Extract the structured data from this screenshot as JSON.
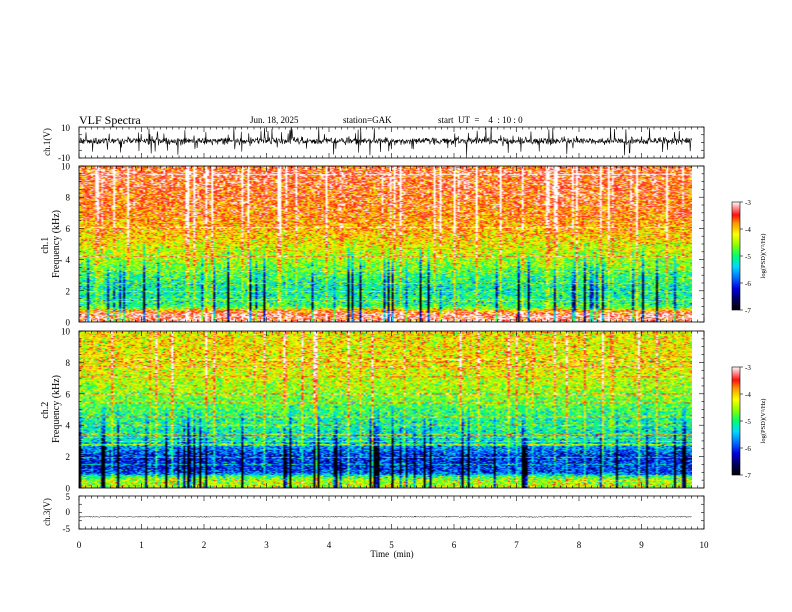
{
  "header": {
    "title": "VLF  Spectra",
    "date": "Jun. 18, 2025",
    "station": "station=GAK",
    "start": "start  UT  =    4  : 10 : 0"
  },
  "chart_data": [
    {
      "type": "line",
      "panel": "ch1-waveform",
      "ylabel": "ch.1(V)",
      "ylim": [
        -10,
        10
      ],
      "y_ticks": [
        "10",
        "-10"
      ],
      "xlim": [
        0,
        10
      ],
      "x_extent_min": 9.8,
      "trace": "dense noise waveform, baseline about 1 V, excursions to about +9 V and -10 V"
    },
    {
      "type": "heatmap",
      "panel": "ch1-spectrogram",
      "ylabel": "ch.1\nFrequency  (kHz)",
      "ylim": [
        0,
        10
      ],
      "y_ticks": [
        "0",
        "2",
        "4",
        "6",
        "8",
        "10"
      ],
      "xlim": [
        0,
        10
      ],
      "x_extent_min": 9.8,
      "color_range": [
        -7,
        -3
      ],
      "colorbar_ticks": [
        "-3",
        "-4",
        "-5",
        "-6",
        "-7"
      ],
      "colorbar_label": "log(PSD)(V²/Hz)",
      "typical_log_psd_by_frequency_khz": [
        {
          "f": 0.5,
          "v": -3.6
        },
        {
          "f": 1.0,
          "v": -5.0
        },
        {
          "f": 2.0,
          "v": -5.2
        },
        {
          "f": 3.0,
          "v": -4.9
        },
        {
          "f": 4.0,
          "v": -4.5
        },
        {
          "f": 5.0,
          "v": -4.2
        },
        {
          "f": 6.0,
          "v": -3.9
        },
        {
          "f": 7.0,
          "v": -3.7
        },
        {
          "f": 8.0,
          "v": -3.6
        },
        {
          "f": 9.0,
          "v": -3.5
        },
        {
          "f": 10.0,
          "v": -3.5
        }
      ],
      "features": "frequent broadband vertical bursts; quieter dark bands (about -7) between bursts below 5 kHz"
    },
    {
      "type": "heatmap",
      "panel": "ch2-spectrogram",
      "ylabel": "ch.2\nFrequency  (kHz)",
      "ylim": [
        0,
        10
      ],
      "y_ticks": [
        "0",
        "2",
        "4",
        "6",
        "8",
        "10"
      ],
      "xlim": [
        0,
        10
      ],
      "x_extent_min": 9.8,
      "color_range": [
        -7,
        -3
      ],
      "colorbar_ticks": [
        "-3",
        "-4",
        "-5",
        "-6",
        "-7"
      ],
      "colorbar_label": "log(PSD)(V²/Hz)",
      "typical_log_psd_by_frequency_khz": [
        {
          "f": 0.5,
          "v": -4.8
        },
        {
          "f": 1.0,
          "v": -6.0
        },
        {
          "f": 2.0,
          "v": -6.1
        },
        {
          "f": 3.0,
          "v": -5.3
        },
        {
          "f": 4.0,
          "v": -5.1
        },
        {
          "f": 5.0,
          "v": -4.9
        },
        {
          "f": 6.0,
          "v": -4.6
        },
        {
          "f": 7.0,
          "v": -4.4
        },
        {
          "f": 8.0,
          "v": -4.2
        },
        {
          "f": 9.0,
          "v": -4.2
        },
        {
          "f": 10.0,
          "v": -4.2
        }
      ],
      "features": "weaker than ch.1; horizontal line interference bands; vertical broadband bursts"
    },
    {
      "type": "line",
      "panel": "ch3-waveform",
      "ylabel": "ch.3(V)",
      "ylim": [
        -5,
        5
      ],
      "y_ticks": [
        "5",
        "0",
        "-5"
      ],
      "xlim": [
        0,
        10
      ],
      "x_extent_min": 9.8,
      "level": -1.3,
      "trace": "thin dense band around -1.3 V"
    }
  ],
  "x_axis": {
    "label": "Time  (min)",
    "ticks": [
      "0",
      "1",
      "2",
      "3",
      "4",
      "5",
      "6",
      "7",
      "8",
      "9",
      "10"
    ]
  },
  "colors": {
    "scale": [
      "#000000",
      "#000060",
      "#0000e0",
      "#0070ff",
      "#00d8ff",
      "#00ff70",
      "#8cff00",
      "#ffff00",
      "#ff9900",
      "#ff1010",
      "#ff9a9a",
      "#ffffff"
    ],
    "trace": "#000000",
    "axis": "#000000"
  }
}
